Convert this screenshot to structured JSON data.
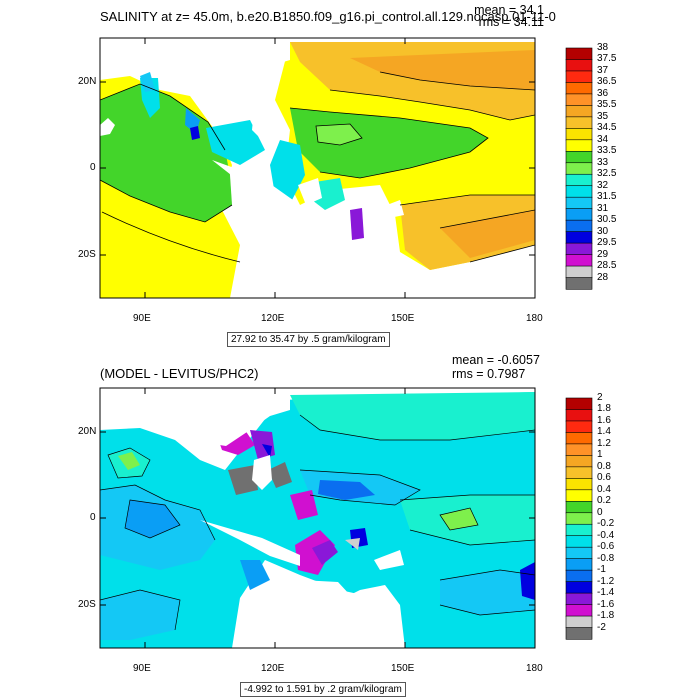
{
  "panels": [
    {
      "title": "SALINITY at z=  45.0m, b.e20.B1850.f09_g16.pi_control.all.129.nocasp.01-11-0",
      "stats": {
        "mean": "mean = 34.1",
        "rms": "rms = 34.11"
      },
      "range_label": "27.92 to 35.47 by .5 gram/kilogram",
      "lat_labels": [
        "20N",
        "0",
        "20S"
      ],
      "lon_labels": [
        "90E",
        "120E",
        "150E",
        "180"
      ],
      "colorbar": {
        "labels": [
          "38",
          "37.5",
          "37",
          "36.5",
          "36",
          "35.5",
          "35",
          "34.5",
          "34",
          "33.5",
          "33",
          "32.5",
          "32",
          "31.5",
          "31",
          "30.5",
          "30",
          "29.5",
          "29",
          "28.5",
          "28"
        ],
        "colors": [
          "#b40000",
          "#e81010",
          "#ff2a10",
          "#ff6a00",
          "#ff9228",
          "#f5a623",
          "#f7c12a",
          "#fbe300",
          "#ffff00",
          "#43d52a",
          "#7ef04c",
          "#19f0cf",
          "#00e0ea",
          "#14c8f5",
          "#0a9ef5",
          "#0a6ef0",
          "#0000e0",
          "#8a18d8",
          "#d010d0",
          "#cfcfcf",
          "#707070"
        ]
      }
    },
    {
      "title": "(MODEL - LEVITUS/PHC2)",
      "stats": {
        "mean": "mean = -0.6057",
        "rms": "rms = 0.7987"
      },
      "range_label": "-4.992 to 1.591 by .2 gram/kilogram",
      "lat_labels": [
        "20N",
        "0",
        "20S"
      ],
      "lon_labels": [
        "90E",
        "120E",
        "150E",
        "180"
      ],
      "colorbar": {
        "labels": [
          "2",
          "1.8",
          "1.6",
          "1.4",
          "1.2",
          "1",
          "0.8",
          "0.6",
          "0.4",
          "0.2",
          "0",
          "-0.2",
          "-0.4",
          "-0.6",
          "-0.8",
          "-1",
          "-1.2",
          "-1.4",
          "-1.6",
          "-1.8",
          "-2"
        ],
        "colors": [
          "#b40000",
          "#e81010",
          "#ff2a10",
          "#ff6a00",
          "#ff9228",
          "#f5a623",
          "#f7c12a",
          "#fbe300",
          "#ffff00",
          "#43d52a",
          "#7ef04c",
          "#19f0cf",
          "#00e0ea",
          "#14c8f5",
          "#0a9ef5",
          "#0a6ef0",
          "#0000e0",
          "#8a18d8",
          "#d010d0",
          "#cfcfcf",
          "#707070"
        ]
      }
    }
  ]
}
